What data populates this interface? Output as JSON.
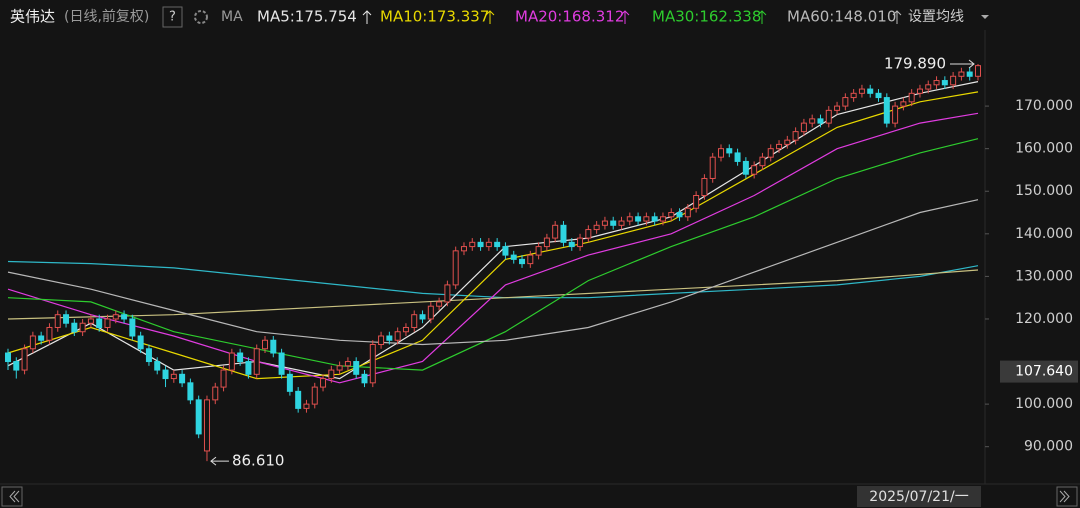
{
  "chart_data": {
    "type": "candlestick",
    "title": "英伟达",
    "subtitle": "(日线,前复权)",
    "help": "?",
    "ma_label": "MA",
    "settings": "设置均线",
    "up_color": "#e0504e",
    "down_color": "#2fd4e0",
    "ylim": [
      85.7,
      182
    ],
    "yticks": [
      {
        "value": 170,
        "label": "170.000"
      },
      {
        "value": 160,
        "label": "160.000"
      },
      {
        "value": 150,
        "label": "150.000"
      },
      {
        "value": 140,
        "label": "140.000"
      },
      {
        "value": 130,
        "label": "130.000"
      },
      {
        "value": 120,
        "label": "120.000"
      },
      {
        "value": 100,
        "label": "100.000"
      },
      {
        "value": 90,
        "label": "90.000"
      }
    ],
    "price_marker": {
      "value": 107.64,
      "label": "107.640"
    },
    "crosshair_date": "2025/07/21/一",
    "annotations": [
      {
        "index": 117,
        "value": 179.89,
        "label": "179.890",
        "side": "left"
      },
      {
        "index": 24,
        "value": 86.61,
        "label": "86.610",
        "side": "right"
      }
    ],
    "ohlc": [
      [
        112,
        113,
        108,
        110
      ],
      [
        110,
        111,
        106,
        108
      ],
      [
        108,
        114,
        107,
        113
      ],
      [
        113,
        117,
        112,
        116
      ],
      [
        116,
        117,
        114,
        115
      ],
      [
        115,
        119,
        114,
        118
      ],
      [
        118,
        122,
        117,
        121
      ],
      [
        121,
        122,
        118,
        119
      ],
      [
        119,
        120,
        116,
        117
      ],
      [
        117,
        120,
        116,
        119
      ],
      [
        119,
        121,
        118,
        120
      ],
      [
        120,
        121,
        117,
        118
      ],
      [
        118,
        121,
        117,
        120
      ],
      [
        120,
        122,
        119,
        121
      ],
      [
        121,
        122,
        119,
        120
      ],
      [
        120,
        121,
        115,
        116
      ],
      [
        116,
        117,
        112,
        113
      ],
      [
        113,
        114,
        109,
        110
      ],
      [
        110,
        111,
        107,
        108
      ],
      [
        108,
        109,
        104,
        106
      ],
      [
        106,
        108,
        105,
        107
      ],
      [
        107,
        108,
        104,
        105
      ],
      [
        105,
        106,
        100,
        101
      ],
      [
        101,
        102,
        92,
        93
      ],
      [
        89,
        102,
        86.61,
        101
      ],
      [
        101,
        105,
        100,
        104
      ],
      [
        104,
        109,
        103,
        108
      ],
      [
        108,
        113,
        107,
        112
      ],
      [
        112,
        113,
        109,
        110
      ],
      [
        110,
        111,
        106,
        107
      ],
      [
        107,
        114,
        106,
        113
      ],
      [
        113,
        116,
        112,
        115
      ],
      [
        115,
        116,
        111,
        112
      ],
      [
        112,
        113,
        106,
        107
      ],
      [
        107,
        108,
        102,
        103
      ],
      [
        103,
        104,
        98,
        99
      ],
      [
        99,
        101,
        98,
        100
      ],
      [
        100,
        105,
        99,
        104
      ],
      [
        104,
        107,
        103,
        106
      ],
      [
        106,
        109,
        105,
        108
      ],
      [
        108,
        110,
        107,
        109
      ],
      [
        109,
        111,
        108,
        110
      ],
      [
        110,
        111,
        106,
        107
      ],
      [
        107,
        108,
        104,
        105
      ],
      [
        105,
        115,
        104,
        114
      ],
      [
        114,
        117,
        113,
        116
      ],
      [
        116,
        117,
        114,
        115
      ],
      [
        115,
        118,
        114,
        117
      ],
      [
        117,
        119,
        116,
        118
      ],
      [
        118,
        122,
        117,
        121
      ],
      [
        121,
        122,
        119,
        120
      ],
      [
        120,
        124,
        119,
        123
      ],
      [
        123,
        125,
        122,
        124
      ],
      [
        124,
        129,
        123,
        128
      ],
      [
        128,
        137,
        127,
        136
      ],
      [
        136,
        138,
        135,
        137
      ],
      [
        137,
        139,
        136,
        138
      ],
      [
        138,
        139,
        136,
        137
      ],
      [
        137,
        139,
        136,
        138
      ],
      [
        138,
        139,
        136,
        137
      ],
      [
        137,
        138,
        134,
        135
      ],
      [
        135,
        136,
        133,
        134
      ],
      [
        134,
        135,
        132,
        133
      ],
      [
        133,
        136,
        132,
        135
      ],
      [
        135,
        138,
        134,
        137
      ],
      [
        137,
        140,
        136,
        139
      ],
      [
        139,
        143,
        138,
        142
      ],
      [
        142,
        143,
        137,
        138
      ],
      [
        138,
        139,
        136,
        137
      ],
      [
        137,
        140,
        136,
        139
      ],
      [
        139,
        142,
        138,
        141
      ],
      [
        141,
        143,
        140,
        142
      ],
      [
        142,
        144,
        141,
        143
      ],
      [
        143,
        144,
        141,
        142
      ],
      [
        142,
        144,
        141,
        143
      ],
      [
        143,
        145,
        142,
        144
      ],
      [
        144,
        145,
        142,
        143
      ],
      [
        143,
        145,
        142,
        144
      ],
      [
        144,
        145,
        142,
        143
      ],
      [
        143,
        145,
        142,
        144
      ],
      [
        144,
        146,
        143,
        145
      ],
      [
        145,
        146,
        143,
        144
      ],
      [
        144,
        147,
        143,
        146
      ],
      [
        146,
        150,
        145,
        149
      ],
      [
        149,
        154,
        148,
        153
      ],
      [
        153,
        159,
        152,
        158
      ],
      [
        158,
        161,
        157,
        160
      ],
      [
        160,
        161,
        158,
        159
      ],
      [
        159,
        160,
        156,
        157
      ],
      [
        157,
        158,
        153,
        154
      ],
      [
        154,
        157,
        153,
        156
      ],
      [
        156,
        159,
        155,
        158
      ],
      [
        158,
        161,
        157,
        160
      ],
      [
        160,
        162,
        159,
        161
      ],
      [
        161,
        163,
        160,
        162
      ],
      [
        162,
        165,
        161,
        164
      ],
      [
        164,
        167,
        163,
        166
      ],
      [
        166,
        168,
        165,
        167
      ],
      [
        167,
        168,
        165,
        166
      ],
      [
        166,
        170,
        165,
        169
      ],
      [
        169,
        171,
        168,
        170
      ],
      [
        170,
        173,
        169,
        172
      ],
      [
        172,
        174,
        171,
        173
      ],
      [
        173,
        175,
        172,
        174
      ],
      [
        174,
        175,
        172,
        173
      ],
      [
        173,
        174,
        171,
        172
      ],
      [
        172,
        173,
        165,
        166
      ],
      [
        166,
        171,
        165,
        170
      ],
      [
        170,
        172,
        169,
        171
      ],
      [
        171,
        174,
        170,
        173
      ],
      [
        173,
        175,
        172,
        174
      ],
      [
        174,
        176,
        173,
        175
      ],
      [
        175,
        177,
        174,
        176
      ],
      [
        176,
        177,
        174,
        175
      ],
      [
        175,
        178,
        174,
        177
      ],
      [
        177,
        179,
        176,
        178
      ],
      [
        178,
        179,
        176,
        177
      ],
      [
        177,
        179.89,
        176,
        179.5
      ]
    ],
    "series": [
      {
        "name": "MA5:175.754",
        "color": "#e6e6e6",
        "x": [
          0,
          10,
          20,
          30,
          40,
          50,
          60,
          70,
          80,
          90,
          100,
          110,
          117
        ],
        "values": [
          109,
          119,
          108,
          110,
          106,
          118,
          137,
          139,
          144,
          156,
          168,
          173,
          175.754
        ]
      },
      {
        "name": "MA10:173.337",
        "color": "#e8d800",
        "x": [
          0,
          10,
          20,
          30,
          40,
          50,
          60,
          70,
          80,
          90,
          100,
          110,
          117
        ],
        "values": [
          112,
          118,
          112,
          106,
          107,
          115,
          134,
          138,
          143,
          154,
          165,
          171,
          173.337
        ]
      },
      {
        "name": "MA20:168.312",
        "color": "#e03ce0",
        "x": [
          0,
          10,
          20,
          30,
          40,
          50,
          60,
          70,
          80,
          90,
          100,
          110,
          117
        ],
        "values": [
          127,
          121,
          116,
          110,
          105,
          110,
          128,
          135,
          140,
          149,
          160,
          166,
          168.312
        ]
      },
      {
        "name": "MA30:162.338",
        "color": "#2ecc2e",
        "x": [
          0,
          10,
          20,
          30,
          40,
          50,
          60,
          70,
          80,
          90,
          100,
          110,
          117
        ],
        "values": [
          125,
          124,
          117,
          113,
          109,
          108,
          117,
          129,
          137,
          144,
          153,
          159,
          162.338
        ]
      },
      {
        "name": "MA60:148.010",
        "color": "#b8b8b8",
        "x": [
          0,
          10,
          20,
          30,
          40,
          50,
          60,
          70,
          80,
          90,
          100,
          110,
          117
        ],
        "values": [
          131,
          127,
          122,
          117,
          115,
          114,
          115,
          118,
          124,
          131,
          138,
          145,
          148.01
        ]
      }
    ],
    "unlabeled_lines": [
      {
        "color": "#2fb8c8",
        "x": [
          0,
          10,
          20,
          30,
          40,
          50,
          60,
          70,
          80,
          90,
          100,
          110,
          117
        ],
        "values": [
          133.5,
          133,
          132,
          130,
          128,
          126,
          125,
          125,
          126,
          127,
          128,
          130,
          132.5
        ]
      },
      {
        "color": "#c8c080",
        "x": [
          0,
          20,
          40,
          60,
          80,
          100,
          117
        ],
        "values": [
          120,
          121,
          123,
          125,
          127,
          129,
          131.5
        ]
      }
    ]
  }
}
